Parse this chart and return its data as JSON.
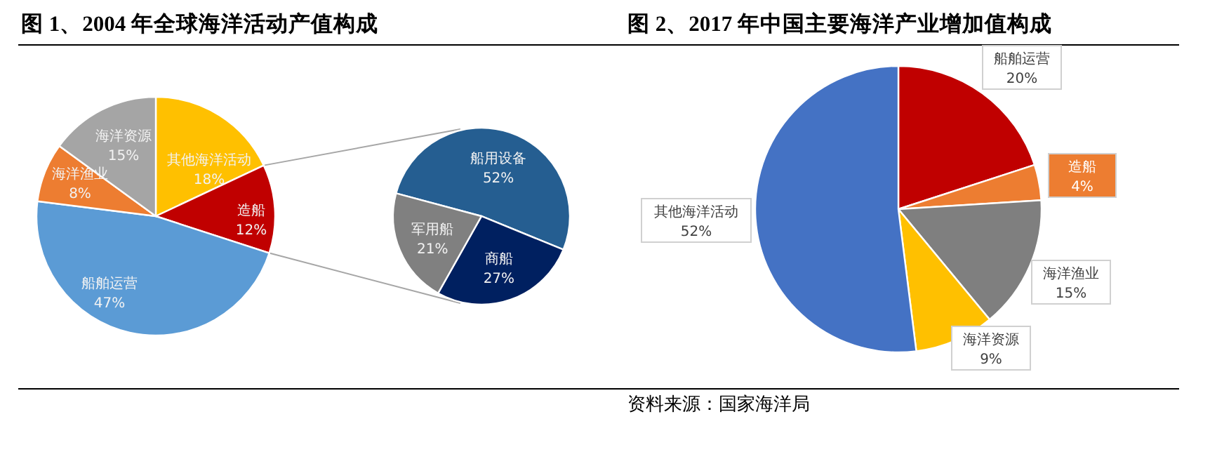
{
  "chart_data": [
    {
      "type": "pie",
      "title": "图 1、2004 年全球海洋活动产值构成",
      "categories": [
        "其他海洋活动",
        "造船",
        "船舶运营",
        "海洋渔业",
        "海洋资源"
      ],
      "values": [
        18,
        12,
        47,
        8,
        15
      ],
      "colors": [
        "#ffc000",
        "#c00000",
        "#5b9bd5",
        "#ed7d31",
        "#a5a5a5"
      ],
      "value_labels": [
        "18%",
        "12%",
        "47%",
        "8%",
        "15%"
      ]
    },
    {
      "type": "pie",
      "categories": [
        "船用设备",
        "商船",
        "军用船"
      ],
      "values": [
        52,
        27,
        21
      ],
      "colors": [
        "#255e91",
        "#002060",
        "#808080"
      ],
      "value_labels": [
        "52%",
        "27%",
        "21%"
      ]
    },
    {
      "type": "pie",
      "title": "图 2、2017 年中国主要海洋产业增加值构成",
      "categories": [
        "船舶运营",
        "造船",
        "海洋渔业",
        "海洋资源",
        "其他海洋活动"
      ],
      "values": [
        20,
        4,
        15,
        9,
        52
      ],
      "colors": [
        "#c00000",
        "#ed7d31",
        "#7f7f7f",
        "#ffc000",
        "#4472c4"
      ],
      "value_labels": [
        "20%",
        "4%",
        "15%",
        "9%",
        "52%"
      ],
      "annotations": [
        "资料来源：国家海洋局"
      ]
    }
  ]
}
